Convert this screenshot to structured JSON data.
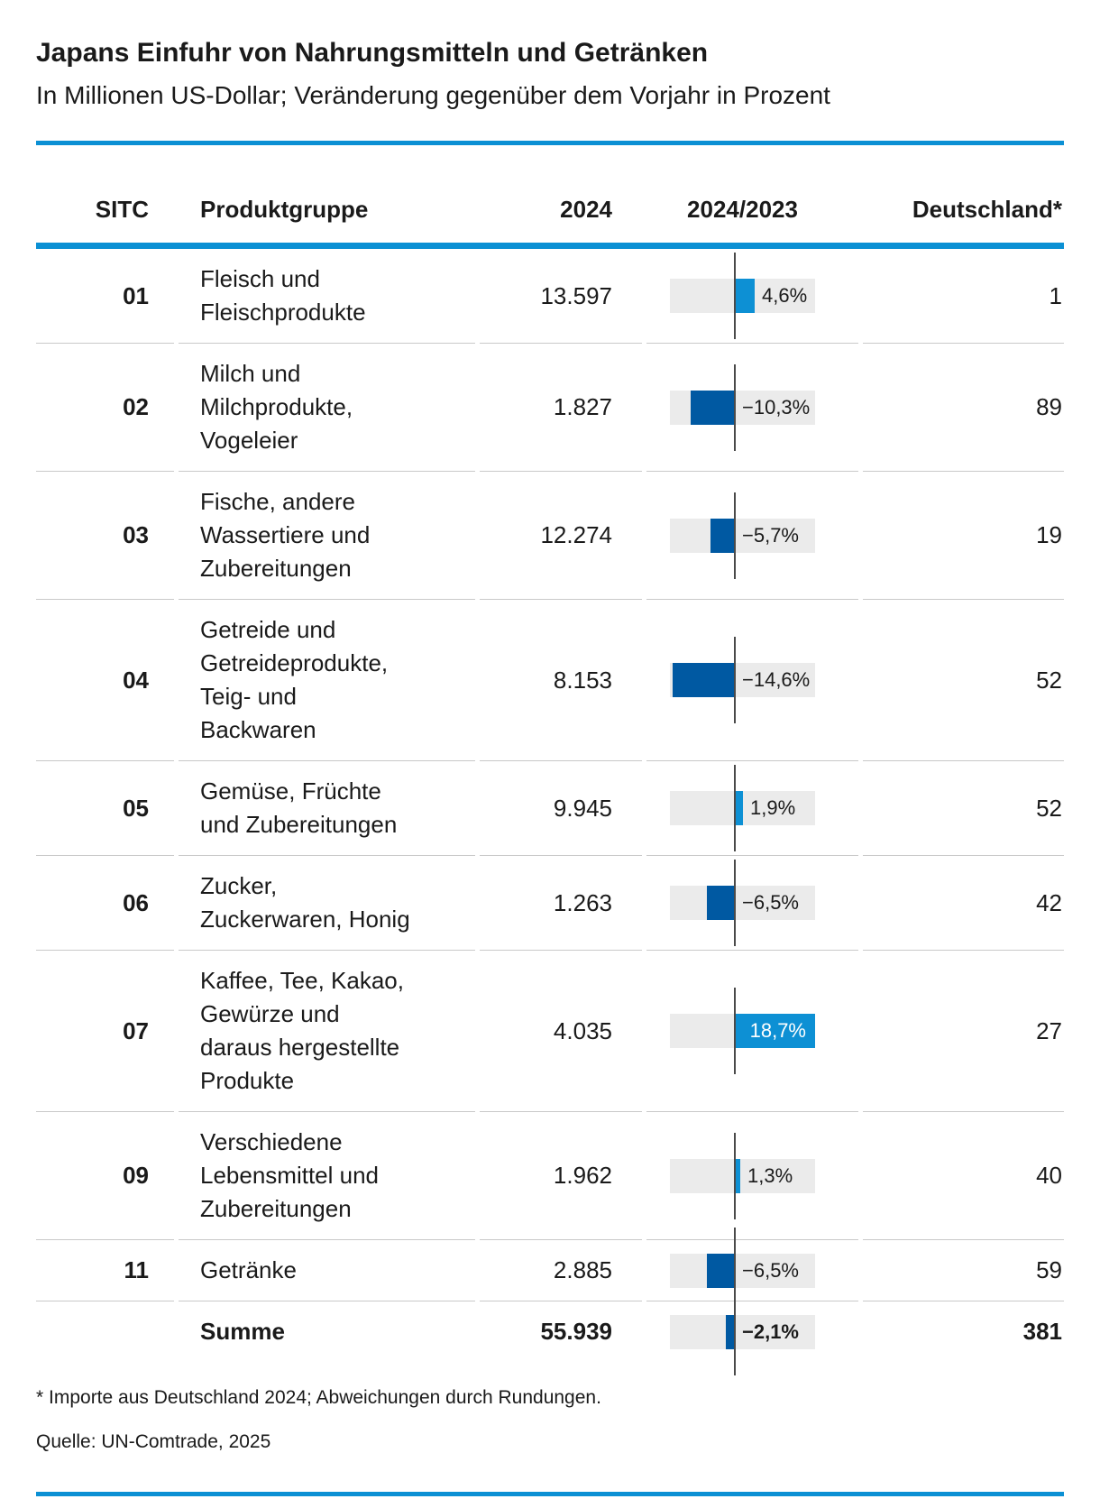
{
  "header": {
    "title": "Japans Einfuhr von Nahrungsmitteln und Getränken",
    "subtitle": "In Millionen US-Dollar; Veränderung gegenüber dem Vorjahr in Prozent"
  },
  "table": {
    "columns": {
      "sitc": "SITC",
      "product": "Produktgruppe",
      "value": "2024",
      "change": "2024/2023",
      "germany": "Deutschland*"
    },
    "rows": [
      {
        "sitc": "01",
        "lines": [
          "Fleisch und",
          "Fleischprodukte"
        ],
        "value_2024": "13.597",
        "change_label": "4,6%",
        "change_pct": 4.6,
        "germany": "1"
      },
      {
        "sitc": "02",
        "lines": [
          "Milch und",
          "Milchprodukte,",
          "Vogeleier"
        ],
        "value_2024": "1.827",
        "change_label": "−10,3%",
        "change_pct": -10.3,
        "germany": "89"
      },
      {
        "sitc": "03",
        "lines": [
          "Fische, andere",
          "Wassertiere und",
          "Zubereitungen"
        ],
        "value_2024": "12.274",
        "change_label": "−5,7%",
        "change_pct": -5.7,
        "germany": "19"
      },
      {
        "sitc": "04",
        "lines": [
          "Getreide und",
          "Getreideprodukte,",
          "Teig- und",
          "Backwaren"
        ],
        "value_2024": "8.153",
        "change_label": "−14,6%",
        "change_pct": -14.6,
        "germany": "52"
      },
      {
        "sitc": "05",
        "lines": [
          "Gemüse, Früchte",
          "und Zubereitungen"
        ],
        "value_2024": "9.945",
        "change_label": "1,9%",
        "change_pct": 1.9,
        "germany": "52"
      },
      {
        "sitc": "06",
        "lines": [
          "Zucker,",
          "Zuckerwaren, Honig"
        ],
        "value_2024": "1.263",
        "change_label": "−6,5%",
        "change_pct": -6.5,
        "germany": "42"
      },
      {
        "sitc": "07",
        "lines": [
          "Kaffee, Tee, Kakao,",
          "Gewürze und",
          "daraus hergestellte",
          "Produkte"
        ],
        "value_2024": "4.035",
        "change_label": "18,7%",
        "change_pct": 18.7,
        "germany": "27",
        "label_inside": true
      },
      {
        "sitc": "09",
        "lines": [
          "Verschiedene",
          "Lebensmittel und",
          "Zubereitungen"
        ],
        "value_2024": "1.962",
        "change_label": "1,3%",
        "change_pct": 1.3,
        "germany": "40"
      },
      {
        "sitc": "11",
        "lines": [
          "Getränke"
        ],
        "value_2024": "2.885",
        "change_label": "−6,5%",
        "change_pct": -6.5,
        "germany": "59"
      },
      {
        "sitc": "",
        "lines": [
          "Summe"
        ],
        "value_2024": "55.939",
        "change_label": "−2,1%",
        "change_pct": -2.1,
        "germany": "381",
        "bold": true
      }
    ]
  },
  "footnotes": {
    "note": "* Importe aus Deutschland 2024; Abweichungen durch Rundungen.",
    "source": "Quelle: UN-Comtrade, 2025"
  },
  "colors": {
    "positive_bar": "#0d90d4",
    "negative_bar": "#0059a2",
    "rule_blue": "#0b90d4",
    "track_gray": "#ebebeb",
    "zero_line": "#4a4a4a",
    "separator": "#c9c9c9",
    "text": "#1a1a1a"
  },
  "chart_data": {
    "type": "bar",
    "title": "Japans Einfuhr von Nahrungsmitteln und Getränken",
    "subtitle": "In Millionen US-Dollar; Veränderung gegenüber dem Vorjahr in Prozent",
    "orientation": "horizontal-diverging",
    "sitc_codes": [
      "01",
      "02",
      "03",
      "04",
      "05",
      "06",
      "07",
      "09",
      "11"
    ],
    "categories": [
      "Fleisch und Fleischprodukte",
      "Milch und Milchprodukte, Vogeleier",
      "Fische, andere Wassertiere und Zubereitungen",
      "Getreide und Getreideprodukte, Teig- und Backwaren",
      "Gemüse, Früchte und Zubereitungen",
      "Zucker, Zuckerwaren, Honig",
      "Kaffee, Tee, Kakao, Gewürze und daraus hergestellte Produkte",
      "Verschiedene Lebensmittel und Zubereitungen",
      "Getränke"
    ],
    "series": [
      {
        "name": "2024 (Mio. US-Dollar)",
        "values": [
          13597,
          1827,
          12274,
          8153,
          9945,
          1263,
          4035,
          1962,
          2885
        ]
      },
      {
        "name": "Veränderung 2024/2023 (%)",
        "values": [
          4.6,
          -10.3,
          -5.7,
          -14.6,
          1.9,
          -6.5,
          18.7,
          1.3,
          -6.5
        ]
      },
      {
        "name": "Importe aus Deutschland 2024",
        "values": [
          1,
          89,
          19,
          52,
          52,
          42,
          27,
          40,
          59
        ]
      }
    ],
    "total": {
      "label": "Summe",
      "value_2024": 55939,
      "change_pct": -2.1,
      "germany": 381
    },
    "bar_axis_range_pct": [
      -15.1,
      18.7
    ],
    "grid": false,
    "legend": "none"
  }
}
